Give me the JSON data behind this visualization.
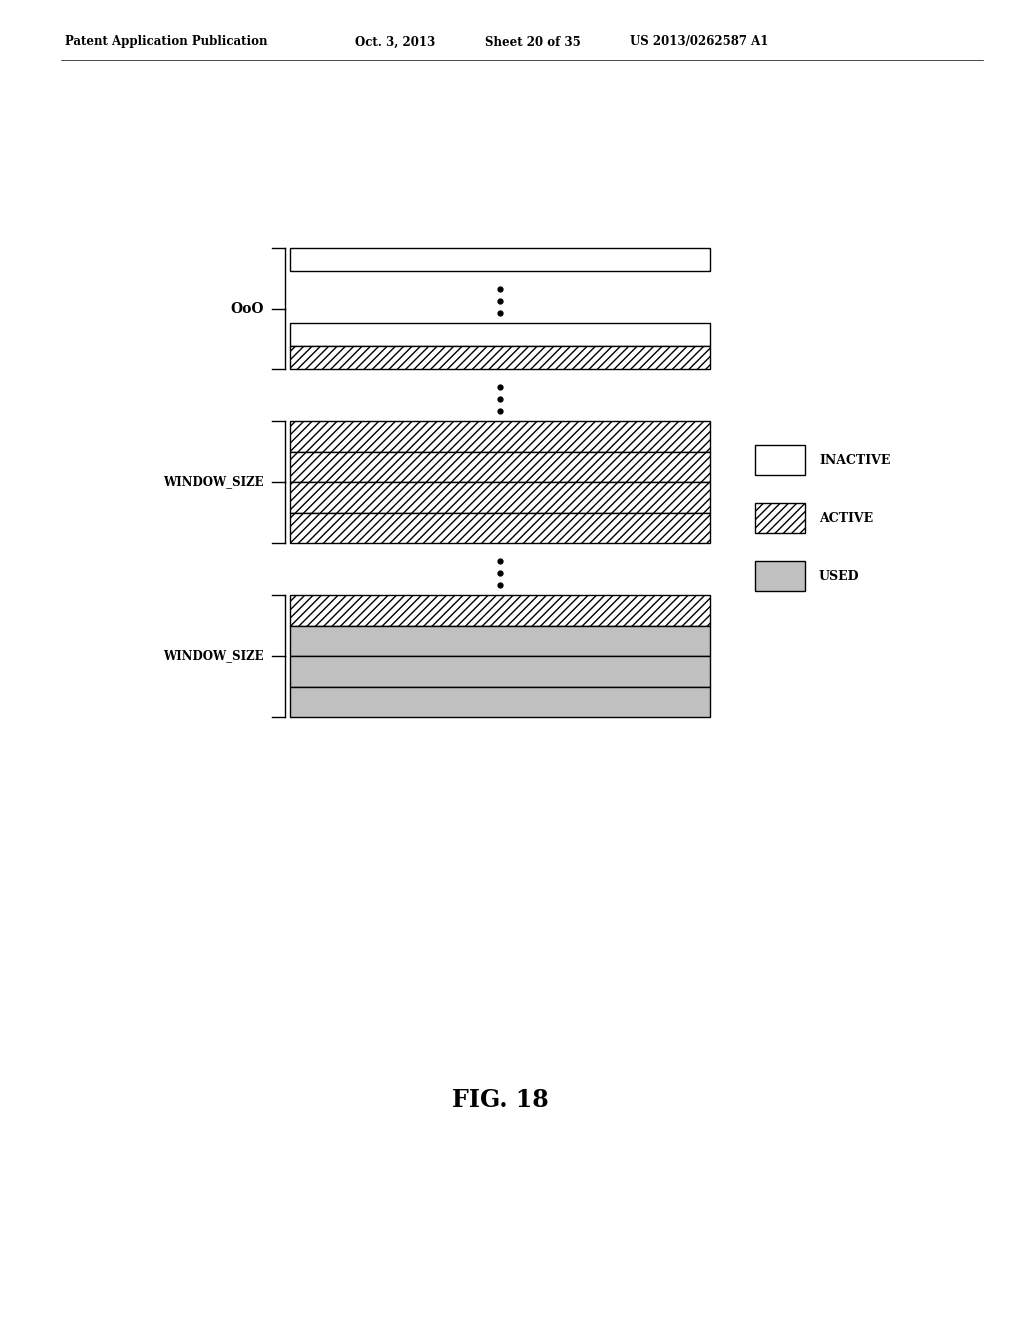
{
  "title_left": "Patent Application Publication",
  "title_date": "Oct. 3, 2013",
  "title_sheet": "Sheet 20 of 35",
  "title_patent": "US 2013/0262587 A1",
  "fig_label": "FIG. 18",
  "ooo_label": "OoO",
  "window_size_label": "WINDOW_SIZE",
  "legend_items": [
    {
      "label": "INACTIVE",
      "facecolor": "white",
      "hatch": null
    },
    {
      "label": "ACTIVE",
      "facecolor": "white",
      "hatch": "////"
    },
    {
      "label": "USED",
      "facecolor": "#c0c0c0",
      "hatch": null
    }
  ],
  "bg_color": "#ffffff"
}
